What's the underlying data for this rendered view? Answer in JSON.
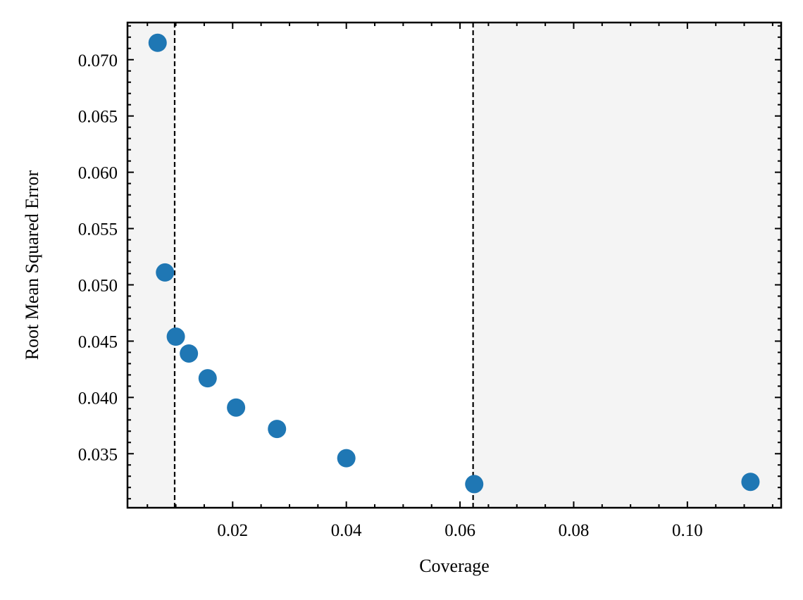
{
  "chart_data": {
    "type": "scatter",
    "xlabel": "Coverage",
    "ylabel": "Root Mean Squared Error",
    "xlim": [
      0.0015,
      0.1165
    ],
    "ylim": [
      0.0302,
      0.0733
    ],
    "x_ticks": [
      0.02,
      0.04,
      0.06,
      0.08,
      0.1
    ],
    "x_tick_labels": [
      "0.02",
      "0.04",
      "0.06",
      "0.08",
      "0.10"
    ],
    "y_ticks": [
      0.035,
      0.04,
      0.045,
      0.05,
      0.055,
      0.06,
      0.065,
      0.07
    ],
    "y_tick_labels": [
      "0.035",
      "0.040",
      "0.045",
      "0.050",
      "0.055",
      "0.060",
      "0.065",
      "0.070"
    ],
    "grid": false,
    "marker_color": "#1f77b4",
    "shaded_color": "#f4f4f4",
    "shaded_regions": [
      [
        0.0015,
        0.0098
      ],
      [
        0.0623,
        0.1165
      ]
    ],
    "vertical_lines": [
      0.0098,
      0.0623
    ],
    "series": [
      {
        "points": [
          {
            "x": 0.0068,
            "y": 0.0715
          },
          {
            "x": 0.0081,
            "y": 0.0511
          },
          {
            "x": 0.01,
            "y": 0.0454
          },
          {
            "x": 0.0123,
            "y": 0.0439
          },
          {
            "x": 0.0156,
            "y": 0.0417
          },
          {
            "x": 0.0206,
            "y": 0.0391
          },
          {
            "x": 0.0278,
            "y": 0.0372
          },
          {
            "x": 0.04,
            "y": 0.0346
          },
          {
            "x": 0.0625,
            "y": 0.0323
          },
          {
            "x": 0.1111,
            "y": 0.0325
          }
        ]
      }
    ]
  }
}
